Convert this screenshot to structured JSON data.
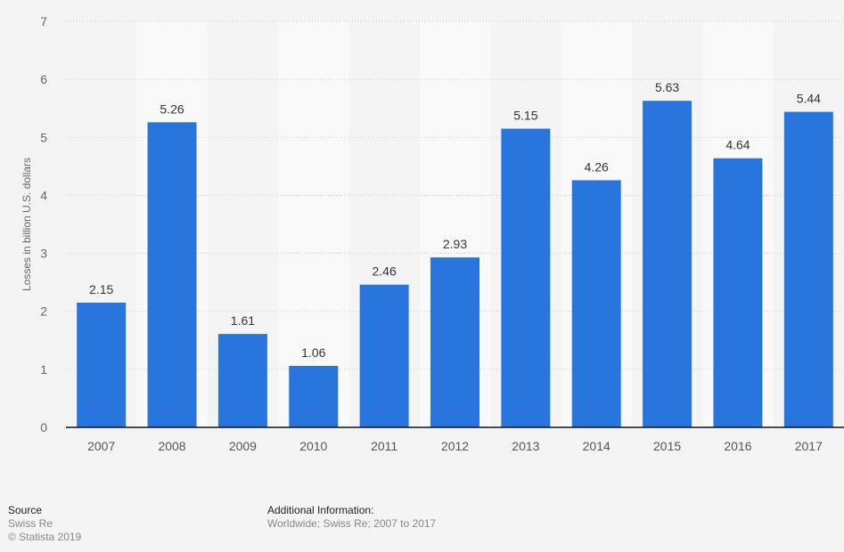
{
  "chart_data": {
    "type": "bar",
    "categories": [
      "2007",
      "2008",
      "2009",
      "2010",
      "2011",
      "2012",
      "2013",
      "2014",
      "2015",
      "2016",
      "2017"
    ],
    "values": [
      2.15,
      5.26,
      1.61,
      1.06,
      2.46,
      2.93,
      5.15,
      4.26,
      5.63,
      4.64,
      5.44
    ],
    "value_labels": [
      "2.15",
      "5.26",
      "1.61",
      "1.06",
      "2.46",
      "2.93",
      "5.15",
      "4.26",
      "5.63",
      "4.64",
      "5.44"
    ],
    "ylabel": "Losses in billion U.S. dollars",
    "ylim": [
      0,
      7
    ],
    "yticks": [
      "0",
      "1",
      "2",
      "3",
      "4",
      "5",
      "6",
      "7"
    ],
    "grid": true,
    "bar_color": "#2876dd"
  },
  "footer": {
    "source_title": "Source",
    "source": "Swiss Re",
    "copyright": "© Statista 2019",
    "info_title": "Additional Information:",
    "info": "Worldwide; Swiss Re; 2007 to 2017"
  }
}
